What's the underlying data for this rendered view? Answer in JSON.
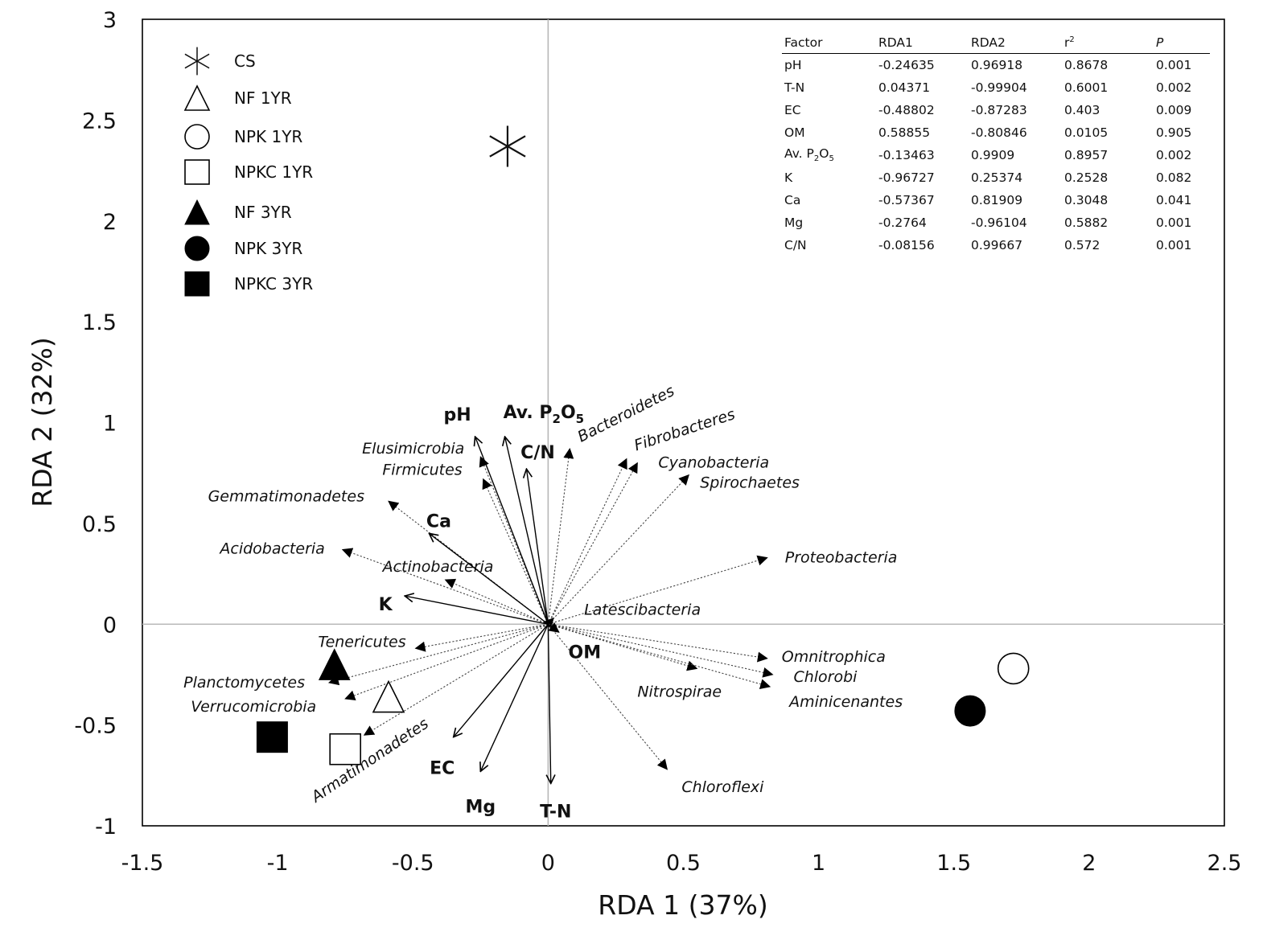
{
  "chart_data": {
    "type": "scatter",
    "subtype": "rda-biplot",
    "title": "",
    "xlabel": "RDA 1 (37%)",
    "ylabel": "RDA 2 (32%)",
    "xlim": [
      -1.5,
      2.5
    ],
    "ylim": [
      -1,
      3
    ],
    "xticks": [
      "-1.5",
      "-1",
      "-0.5",
      "0",
      "0.5",
      "1",
      "1.5",
      "2",
      "2.5"
    ],
    "yticks": [
      "3",
      "2.5",
      "2",
      "1.5",
      "1",
      "0.5",
      "0",
      "-0.5",
      "-1"
    ],
    "xtick_values": [
      -1.5,
      -1,
      -0.5,
      0,
      0.5,
      1,
      1.5,
      2,
      2.5
    ],
    "ytick_values": [
      3,
      2.5,
      2,
      1.5,
      1,
      0.5,
      0,
      -0.5,
      -1
    ],
    "zero_lines": true,
    "legend_position": "top-left",
    "samples": [
      {
        "name": "CS",
        "marker": "asterisk",
        "x": -0.15,
        "y": 2.37
      },
      {
        "name": "NF 1YR",
        "marker": "triangle-open",
        "x": -0.59,
        "y": -0.36
      },
      {
        "name": "NPK 1YR",
        "marker": "circle-open",
        "x": 1.72,
        "y": -0.22
      },
      {
        "name": "NPKC 1YR",
        "marker": "square-open",
        "x": -0.75,
        "y": -0.62
      },
      {
        "name": "NF 3YR",
        "marker": "triangle-filled",
        "x": -0.79,
        "y": -0.2
      },
      {
        "name": "NPK 3YR",
        "marker": "circle-filled",
        "x": 1.56,
        "y": -0.43
      },
      {
        "name": "NPKC 3YR",
        "marker": "square-filled",
        "x": -1.02,
        "y": -0.56
      }
    ],
    "environment_vectors": [
      {
        "name": "pH",
        "x": -0.27,
        "y": 0.93
      },
      {
        "name": "Av. P",
        "sub1": "2",
        "mid": "O",
        "sub2": "5",
        "x": -0.16,
        "y": 0.93
      },
      {
        "name": "C/N",
        "x": -0.08,
        "y": 0.77
      },
      {
        "name": "Ca",
        "x": -0.44,
        "y": 0.45
      },
      {
        "name": "K",
        "x": -0.53,
        "y": 0.14
      },
      {
        "name": "OM",
        "x": 0.04,
        "y": -0.04
      },
      {
        "name": "EC",
        "x": -0.35,
        "y": -0.56
      },
      {
        "name": "Mg",
        "x": -0.25,
        "y": -0.73
      },
      {
        "name": "T-N",
        "x": 0.01,
        "y": -0.79
      }
    ],
    "phylum_vectors": [
      {
        "name": "Bacteroidetes",
        "x": 0.08,
        "y": 0.87
      },
      {
        "name": "Fibrobacteres",
        "x": 0.29,
        "y": 0.82
      },
      {
        "name": "Cyanobacteria",
        "x": 0.33,
        "y": 0.8
      },
      {
        "name": "Spirochaetes",
        "x": 0.52,
        "y": 0.74
      },
      {
        "name": "Elusimicrobia",
        "x": -0.25,
        "y": 0.83
      },
      {
        "name": "Firmicutes",
        "x": -0.24,
        "y": 0.72
      },
      {
        "name": "Gemmatimonadetes",
        "x": -0.59,
        "y": 0.61
      },
      {
        "name": "Acidobacteria",
        "x": -0.76,
        "y": 0.37
      },
      {
        "name": "Actinobacteria",
        "x": -0.38,
        "y": 0.22
      },
      {
        "name": "Proteobacteria",
        "x": 0.81,
        "y": 0.33
      },
      {
        "name": "Latescibacteria",
        "x": 0.02,
        "y": 0.03
      },
      {
        "name": "Tenericutes",
        "x": -0.49,
        "y": -0.12
      },
      {
        "name": "Planctomycetes",
        "x": -0.81,
        "y": -0.29
      },
      {
        "name": "Verrucomicrobia",
        "x": -0.75,
        "y": -0.37
      },
      {
        "name": "Armatimonadetes",
        "x": -0.68,
        "y": -0.55
      },
      {
        "name": "Nitrospirae",
        "x": 0.55,
        "y": -0.22
      },
      {
        "name": "Omnitrophica",
        "x": 0.81,
        "y": -0.17
      },
      {
        "name": "Chlorobi",
        "x": 0.83,
        "y": -0.25
      },
      {
        "name": "Aminicenantes",
        "x": 0.82,
        "y": -0.31
      },
      {
        "name": "Chloroflexi",
        "x": 0.44,
        "y": -0.72
      }
    ],
    "table": {
      "headers": [
        {
          "text": "Factor"
        },
        {
          "text": "RDA1"
        },
        {
          "text": "RDA2"
        },
        {
          "base": "r",
          "sup": "2"
        },
        {
          "text": "P",
          "italic": true
        }
      ],
      "rows": [
        {
          "factor": "pH",
          "rda1": "-0.24635",
          "rda2": "0.96918",
          "r2": "0.8678",
          "p": "0.001"
        },
        {
          "factor": "T-N",
          "rda1": "0.04371",
          "rda2": "-0.99904",
          "r2": "0.6001",
          "p": "0.002"
        },
        {
          "factor": "EC",
          "rda1": "-0.48802",
          "rda2": "-0.87283",
          "r2": "0.403",
          "p": "0.009"
        },
        {
          "factor": "OM",
          "rda1": "0.58855",
          "rda2": "-0.80846",
          "r2": "0.0105",
          "p": "0.905"
        },
        {
          "factor": "Av. P",
          "sub1": "2",
          "mid": "O",
          "sub2": "5",
          "rda1": "-0.13463",
          "rda2": "0.9909",
          "r2": "0.8957",
          "p": "0.002"
        },
        {
          "factor": "K",
          "rda1": "-0.96727",
          "rda2": "0.25374",
          "r2": "0.2528",
          "p": "0.082"
        },
        {
          "factor": "Ca",
          "rda1": "-0.57367",
          "rda2": "0.81909",
          "r2": "0.3048",
          "p": "0.041"
        },
        {
          "factor": "Mg",
          "rda1": "-0.2764",
          "rda2": "-0.96104",
          "r2": "0.5882",
          "p": "0.001"
        },
        {
          "factor": "C/N",
          "rda1": "-0.08156",
          "rda2": "0.99667",
          "r2": "0.572",
          "p": "0.001"
        }
      ]
    }
  }
}
